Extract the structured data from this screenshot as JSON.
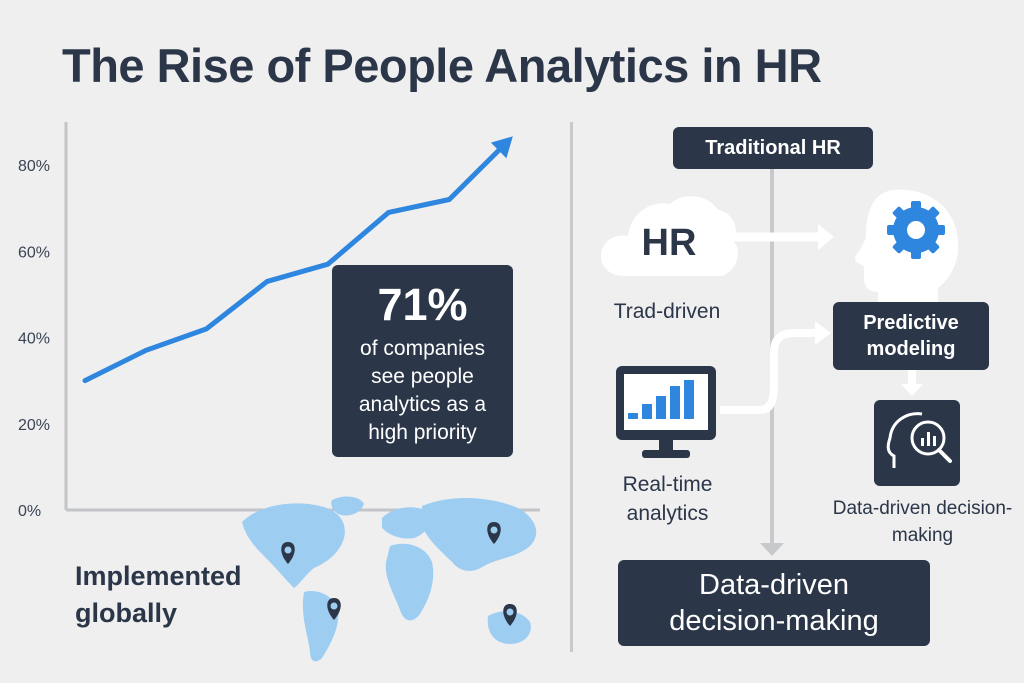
{
  "title": "The Rise of People Analytics in HR",
  "chart_data": {
    "type": "line",
    "y_ticks": [
      "80%",
      "60%",
      "40%",
      "20%",
      "0%"
    ],
    "ylim": [
      0,
      85
    ],
    "values": [
      30,
      37,
      42,
      53,
      57,
      69,
      72,
      86
    ],
    "color": "#2f86de"
  },
  "stat": {
    "value": "71%",
    "text": "of companies see people analytics as a high priority"
  },
  "global_label": "Implemented globally",
  "flow": {
    "traditional": "Traditional HR",
    "cloud_text": "HR",
    "trad_driven": "Trad-driven",
    "predictive": "Predictive modeling",
    "realtime": "Real-time analytics",
    "decision_small": "Data-driven decision-making",
    "final_line1": "Data-driven",
    "final_line2": "decision-making"
  },
  "colors": {
    "dark": "#2b3648",
    "accent": "#2f86de",
    "map": "#9ecdf2",
    "background": "#efeff0"
  }
}
